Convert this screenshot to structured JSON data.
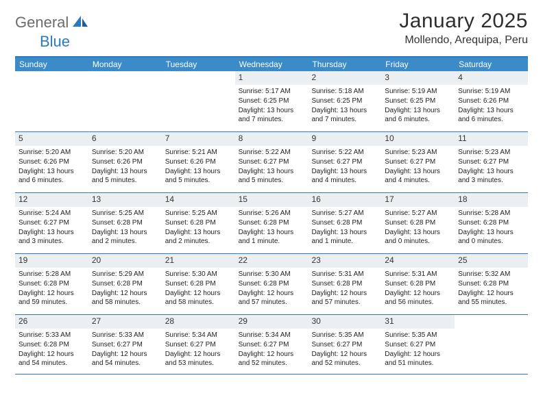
{
  "logo": {
    "text1": "General",
    "text2": "Blue"
  },
  "title": "January 2025",
  "subtitle": "Mollendo, Arequipa, Peru",
  "colors": {
    "header_bar": "#3b8bc9",
    "border": "#2b7ac0",
    "daynum_bg": "#eceff2",
    "text": "#333333",
    "logo_gray": "#6b6b6b",
    "logo_blue": "#2b7ac0"
  },
  "day_headers": [
    "Sunday",
    "Monday",
    "Tuesday",
    "Wednesday",
    "Thursday",
    "Friday",
    "Saturday"
  ],
  "weeks": [
    [
      {
        "n": "",
        "empty": true
      },
      {
        "n": "",
        "empty": true
      },
      {
        "n": "",
        "empty": true
      },
      {
        "n": "1",
        "sr": "5:17 AM",
        "ss": "6:25 PM",
        "dl": "13 hours and 7 minutes."
      },
      {
        "n": "2",
        "sr": "5:18 AM",
        "ss": "6:25 PM",
        "dl": "13 hours and 7 minutes."
      },
      {
        "n": "3",
        "sr": "5:19 AM",
        "ss": "6:25 PM",
        "dl": "13 hours and 6 minutes."
      },
      {
        "n": "4",
        "sr": "5:19 AM",
        "ss": "6:26 PM",
        "dl": "13 hours and 6 minutes."
      }
    ],
    [
      {
        "n": "5",
        "sr": "5:20 AM",
        "ss": "6:26 PM",
        "dl": "13 hours and 6 minutes."
      },
      {
        "n": "6",
        "sr": "5:20 AM",
        "ss": "6:26 PM",
        "dl": "13 hours and 5 minutes."
      },
      {
        "n": "7",
        "sr": "5:21 AM",
        "ss": "6:26 PM",
        "dl": "13 hours and 5 minutes."
      },
      {
        "n": "8",
        "sr": "5:22 AM",
        "ss": "6:27 PM",
        "dl": "13 hours and 5 minutes."
      },
      {
        "n": "9",
        "sr": "5:22 AM",
        "ss": "6:27 PM",
        "dl": "13 hours and 4 minutes."
      },
      {
        "n": "10",
        "sr": "5:23 AM",
        "ss": "6:27 PM",
        "dl": "13 hours and 4 minutes."
      },
      {
        "n": "11",
        "sr": "5:23 AM",
        "ss": "6:27 PM",
        "dl": "13 hours and 3 minutes."
      }
    ],
    [
      {
        "n": "12",
        "sr": "5:24 AM",
        "ss": "6:27 PM",
        "dl": "13 hours and 3 minutes."
      },
      {
        "n": "13",
        "sr": "5:25 AM",
        "ss": "6:28 PM",
        "dl": "13 hours and 2 minutes."
      },
      {
        "n": "14",
        "sr": "5:25 AM",
        "ss": "6:28 PM",
        "dl": "13 hours and 2 minutes."
      },
      {
        "n": "15",
        "sr": "5:26 AM",
        "ss": "6:28 PM",
        "dl": "13 hours and 1 minute."
      },
      {
        "n": "16",
        "sr": "5:27 AM",
        "ss": "6:28 PM",
        "dl": "13 hours and 1 minute."
      },
      {
        "n": "17",
        "sr": "5:27 AM",
        "ss": "6:28 PM",
        "dl": "13 hours and 0 minutes."
      },
      {
        "n": "18",
        "sr": "5:28 AM",
        "ss": "6:28 PM",
        "dl": "13 hours and 0 minutes."
      }
    ],
    [
      {
        "n": "19",
        "sr": "5:28 AM",
        "ss": "6:28 PM",
        "dl": "12 hours and 59 minutes."
      },
      {
        "n": "20",
        "sr": "5:29 AM",
        "ss": "6:28 PM",
        "dl": "12 hours and 58 minutes."
      },
      {
        "n": "21",
        "sr": "5:30 AM",
        "ss": "6:28 PM",
        "dl": "12 hours and 58 minutes."
      },
      {
        "n": "22",
        "sr": "5:30 AM",
        "ss": "6:28 PM",
        "dl": "12 hours and 57 minutes."
      },
      {
        "n": "23",
        "sr": "5:31 AM",
        "ss": "6:28 PM",
        "dl": "12 hours and 57 minutes."
      },
      {
        "n": "24",
        "sr": "5:31 AM",
        "ss": "6:28 PM",
        "dl": "12 hours and 56 minutes."
      },
      {
        "n": "25",
        "sr": "5:32 AM",
        "ss": "6:28 PM",
        "dl": "12 hours and 55 minutes."
      }
    ],
    [
      {
        "n": "26",
        "sr": "5:33 AM",
        "ss": "6:28 PM",
        "dl": "12 hours and 54 minutes."
      },
      {
        "n": "27",
        "sr": "5:33 AM",
        "ss": "6:27 PM",
        "dl": "12 hours and 54 minutes."
      },
      {
        "n": "28",
        "sr": "5:34 AM",
        "ss": "6:27 PM",
        "dl": "12 hours and 53 minutes."
      },
      {
        "n": "29",
        "sr": "5:34 AM",
        "ss": "6:27 PM",
        "dl": "12 hours and 52 minutes."
      },
      {
        "n": "30",
        "sr": "5:35 AM",
        "ss": "6:27 PM",
        "dl": "12 hours and 52 minutes."
      },
      {
        "n": "31",
        "sr": "5:35 AM",
        "ss": "6:27 PM",
        "dl": "12 hours and 51 minutes."
      },
      {
        "n": "",
        "empty": true
      }
    ]
  ],
  "labels": {
    "sunrise": "Sunrise:",
    "sunset": "Sunset:",
    "daylight": "Daylight:"
  }
}
